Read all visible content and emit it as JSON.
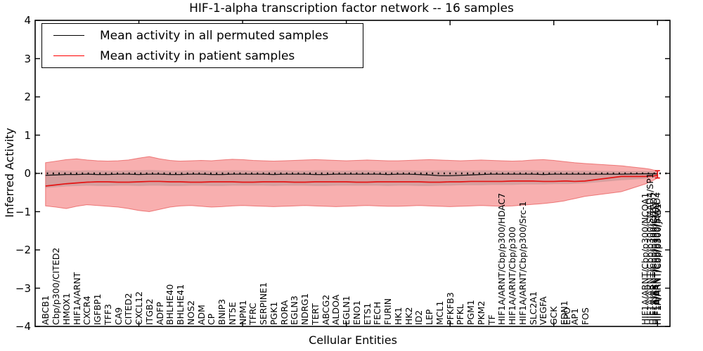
{
  "title": "HIF-1-alpha transcription factor network -- 16 samples",
  "axes": {
    "x_label": "Cellular Entities",
    "y_label": "Inferred Activity",
    "y_tick_labels": [
      "4",
      "3",
      "2",
      "1",
      "0",
      "−1",
      "−2",
      "−3",
      "−4"
    ],
    "y_tick_values": [
      4,
      3,
      2,
      1,
      0,
      -1,
      -2,
      -3,
      -4
    ],
    "x_major_tick_units": [
      10,
      20,
      30,
      40,
      50,
      60
    ]
  },
  "legend": {
    "entries": [
      {
        "label": "Mean activity in all permuted samples",
        "color": "#000000"
      },
      {
        "label": "Mean activity in patient samples",
        "color": "#ff0000"
      }
    ]
  },
  "colors": {
    "patient_line": "#e51414",
    "permuted_line": "#141414",
    "patient_band_fill": "rgba(235,25,25,0.35)",
    "patient_band_edge": "rgba(225,45,45,0.55)",
    "permuted_band_fill": "rgba(110,110,110,0.24)",
    "zero_line": "#000000",
    "frame": "#000000"
  },
  "chart_data": {
    "type": "line",
    "title": "HIF-1-alpha transcription factor network -- 16 samples",
    "xlabel": "Cellular Entities",
    "ylabel": "Inferred Activity",
    "ylim": [
      -4,
      4
    ],
    "xlim": [
      0,
      61.2
    ],
    "grid": false,
    "legend_position": "upper left",
    "zero_reference_line": 0,
    "x": [
      1,
      2,
      3,
      4,
      5,
      6,
      7,
      8,
      9,
      10,
      11,
      12,
      13,
      14,
      15,
      16,
      17,
      18,
      19,
      20,
      21,
      22,
      23,
      24,
      25,
      26,
      27,
      28,
      29,
      30,
      31,
      32,
      33,
      34,
      35,
      36,
      37,
      38,
      39,
      40,
      41,
      42,
      43,
      44,
      45,
      46,
      47,
      48,
      49,
      50,
      51,
      51.3,
      52,
      53,
      56.5,
      58.8,
      59.3,
      59.6,
      59.8,
      59.95,
      60
    ],
    "categories": [
      "ABCB1",
      "Cbp/p300/CITED2",
      "HMOX1",
      "HIF1A/ARNT",
      "CXCR4",
      "IGFBP1",
      "TFF3",
      "CA9",
      "CITED2",
      "CXCL12",
      "ITGB2",
      "ADFP",
      "BHLHE40",
      "BHLHE41",
      "NOS2",
      "ADM",
      "CP",
      "BNIP3",
      "NT5E",
      "NPM1",
      "TFRC",
      "SERPINE1",
      "PGK1",
      "RORA",
      "EGLN3",
      "NDRG1",
      "TERT",
      "ABCG2",
      "ALDOA",
      "EGLN1",
      "ENO1",
      "ETS1",
      "FECH",
      "FURIN",
      "HK1",
      "HK2",
      "ID2",
      "LEP",
      "MCL1",
      "PFKFB3",
      "PFKL",
      "PGM1",
      "PKM2",
      "TF",
      "HIF1A/ARNT/Cbp/p300/HDAC7",
      "HIF1A/ARNT/Cbp/p300",
      "HIF1A/ARNT/Cbp/p300/Src-1",
      "SLC2A1",
      "VEGFA",
      "GCK",
      "EDN1",
      "EPO",
      "AP1",
      "FOS",
      "",
      "HIF1A/ARNT/Cbp/p300/NCOA1",
      "HIF1A/ARNT/Cbp/p300/SMAD4/SP1",
      "HIF1A/ARNT/Cbp/p300/CITED2",
      "HIF1A/ARNT/Cbp/p300/ETS1",
      "HIF1A/ARNT/Cbp/p300/SMAD4",
      "HIF1A/ARNT/Cbp/p300/JAB1"
    ],
    "series": [
      {
        "name": "Mean activity in all permuted samples",
        "values": [
          -0.05,
          -0.04,
          -0.03,
          -0.03,
          -0.02,
          -0.03,
          -0.03,
          -0.02,
          -0.02,
          -0.03,
          -0.02,
          -0.02,
          -0.03,
          -0.03,
          -0.02,
          -0.02,
          -0.03,
          -0.03,
          -0.02,
          -0.02,
          -0.02,
          -0.02,
          -0.03,
          -0.02,
          -0.02,
          -0.02,
          -0.03,
          -0.03,
          -0.02,
          -0.02,
          -0.02,
          -0.02,
          -0.02,
          -0.03,
          -0.02,
          -0.02,
          -0.03,
          -0.04,
          -0.06,
          -0.06,
          -0.05,
          -0.04,
          -0.03,
          -0.02,
          -0.02,
          -0.02,
          -0.02,
          -0.02,
          -0.03,
          -0.02,
          -0.02,
          -0.02,
          -0.02,
          -0.02,
          -0.02,
          -0.01,
          -0.01,
          -0.01,
          -0.01,
          -0.01,
          0.0
        ]
      },
      {
        "name": "Mean activity in patient samples",
        "values": [
          -0.33,
          -0.3,
          -0.27,
          -0.25,
          -0.23,
          -0.22,
          -0.22,
          -0.23,
          -0.23,
          -0.22,
          -0.21,
          -0.21,
          -0.22,
          -0.22,
          -0.23,
          -0.23,
          -0.22,
          -0.22,
          -0.22,
          -0.23,
          -0.23,
          -0.22,
          -0.22,
          -0.22,
          -0.23,
          -0.23,
          -0.22,
          -0.22,
          -0.22,
          -0.22,
          -0.23,
          -0.23,
          -0.22,
          -0.22,
          -0.22,
          -0.22,
          -0.22,
          -0.23,
          -0.23,
          -0.22,
          -0.22,
          -0.21,
          -0.21,
          -0.21,
          -0.21,
          -0.2,
          -0.2,
          -0.2,
          -0.21,
          -0.21,
          -0.2,
          -0.2,
          -0.21,
          -0.2,
          -0.08,
          -0.08,
          -0.07,
          -0.07,
          -0.06,
          -0.05,
          -0.04
        ]
      }
    ],
    "bands": [
      {
        "name": "patient std band",
        "upper": [
          0.28,
          0.32,
          0.36,
          0.38,
          0.35,
          0.33,
          0.32,
          0.33,
          0.35,
          0.4,
          0.44,
          0.38,
          0.34,
          0.32,
          0.33,
          0.34,
          0.33,
          0.35,
          0.37,
          0.36,
          0.34,
          0.33,
          0.32,
          0.33,
          0.34,
          0.35,
          0.36,
          0.35,
          0.34,
          0.33,
          0.34,
          0.35,
          0.34,
          0.33,
          0.33,
          0.34,
          0.35,
          0.36,
          0.35,
          0.34,
          0.33,
          0.34,
          0.35,
          0.34,
          0.33,
          0.32,
          0.33,
          0.35,
          0.36,
          0.34,
          0.31,
          0.3,
          0.28,
          0.26,
          0.2,
          0.13,
          0.11,
          0.09,
          0.08,
          0.07,
          0.07
        ],
        "lower": [
          -0.85,
          -0.88,
          -0.92,
          -0.86,
          -0.82,
          -0.84,
          -0.86,
          -0.88,
          -0.92,
          -0.97,
          -1.0,
          -0.94,
          -0.88,
          -0.85,
          -0.84,
          -0.86,
          -0.88,
          -0.87,
          -0.85,
          -0.84,
          -0.85,
          -0.86,
          -0.87,
          -0.86,
          -0.85,
          -0.84,
          -0.85,
          -0.86,
          -0.87,
          -0.86,
          -0.85,
          -0.84,
          -0.85,
          -0.86,
          -0.86,
          -0.85,
          -0.84,
          -0.85,
          -0.86,
          -0.87,
          -0.86,
          -0.85,
          -0.84,
          -0.85,
          -0.86,
          -0.85,
          -0.83,
          -0.81,
          -0.79,
          -0.76,
          -0.72,
          -0.7,
          -0.66,
          -0.6,
          -0.48,
          -0.28,
          -0.22,
          -0.18,
          -0.15,
          -0.13,
          -0.12
        ]
      },
      {
        "name": "permuted std band",
        "upper": [
          0.08,
          0.08,
          0.07,
          0.07,
          0.08,
          0.08,
          0.07,
          0.07,
          0.08,
          0.08,
          0.09,
          0.08,
          0.07,
          0.07,
          0.08,
          0.08,
          0.07,
          0.07,
          0.08,
          0.08,
          0.07,
          0.07,
          0.08,
          0.08,
          0.07,
          0.07,
          0.08,
          0.08,
          0.07,
          0.07,
          0.08,
          0.08,
          0.07,
          0.07,
          0.08,
          0.08,
          0.07,
          0.07,
          0.08,
          0.08,
          0.07,
          0.07,
          0.08,
          0.08,
          0.07,
          0.07,
          0.08,
          0.08,
          0.07,
          0.07,
          0.07,
          0.07,
          0.07,
          0.07,
          0.06,
          0.06,
          0.06,
          0.05,
          0.05,
          0.05,
          0.05
        ],
        "lower": [
          -0.38,
          -0.36,
          -0.34,
          -0.33,
          -0.32,
          -0.33,
          -0.33,
          -0.32,
          -0.32,
          -0.33,
          -0.32,
          -0.32,
          -0.33,
          -0.33,
          -0.32,
          -0.32,
          -0.33,
          -0.33,
          -0.32,
          -0.32,
          -0.32,
          -0.32,
          -0.33,
          -0.32,
          -0.32,
          -0.32,
          -0.33,
          -0.33,
          -0.32,
          -0.32,
          -0.32,
          -0.32,
          -0.32,
          -0.33,
          -0.32,
          -0.32,
          -0.33,
          -0.33,
          -0.32,
          -0.32,
          -0.31,
          -0.31,
          -0.31,
          -0.3,
          -0.3,
          -0.3,
          -0.29,
          -0.29,
          -0.29,
          -0.28,
          -0.28,
          -0.28,
          -0.27,
          -0.26,
          -0.18,
          -0.14,
          -0.12,
          -0.11,
          -0.1,
          -0.1,
          -0.09
        ]
      }
    ],
    "end_cap": {
      "x": 60,
      "upper": 0.07,
      "lower": -0.12
    }
  }
}
